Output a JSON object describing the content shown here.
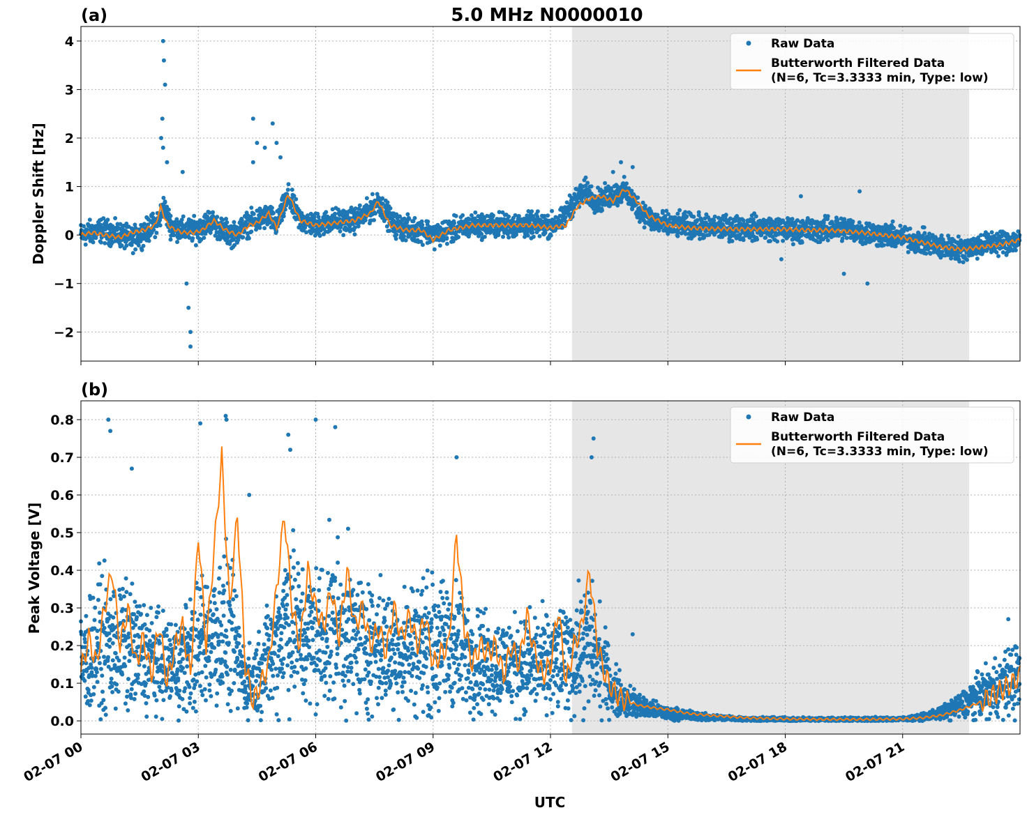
{
  "figure": {
    "title": "5.0 MHz N0000010",
    "xlabel": "UTC",
    "x_ticks": [
      "02-07 00",
      "02-07 03",
      "02-07 06",
      "02-07 09",
      "02-07 12",
      "02-07 15",
      "02-07 18",
      "02-07 21"
    ],
    "shaded_region_hours": [
      12.55,
      22.7
    ],
    "colors": {
      "raw": "#1f77b4",
      "filtered": "#ff7f0e",
      "shade": "#e6e6e6",
      "grid": "#b0b0b0"
    },
    "legend": {
      "raw_label": "Raw Data",
      "filtered_label_line1": "Butterworth Filtered Data",
      "filtered_label_line2": "(N=6, Tc=3.3333 min, Type: low)"
    }
  },
  "chart_data": [
    {
      "panel": "(a)",
      "type": "scatter",
      "ylabel": "Doppler Shift [Hz]",
      "ylim": [
        -2.6,
        4.3
      ],
      "xlim_hours": [
        0,
        24
      ],
      "y_ticks": [
        "4",
        "3",
        "2",
        "1",
        "0",
        "−1",
        "−2"
      ],
      "y_tick_values": [
        4,
        3,
        2,
        1,
        0,
        -1,
        -2
      ],
      "series": [
        {
          "name": "Raw Data",
          "kind": "points",
          "spread": 0.2,
          "x": [
            0,
            0.5,
            1,
            1.3,
            1.7,
            2,
            2.1,
            2.3,
            2.6,
            2.8,
            3,
            3.3,
            3.6,
            3.9,
            4.2,
            4.5,
            4.8,
            5,
            5.3,
            5.6,
            6,
            6.5,
            7,
            7.4,
            7.6,
            8,
            8.5,
            8.8,
            9,
            9.5,
            10,
            10.5,
            11,
            11.5,
            12,
            12.3,
            12.6,
            12.9,
            13.2,
            13.5,
            13.9,
            14.2,
            14.6,
            15,
            15.5,
            16,
            16.5,
            17,
            17.5,
            18,
            18.5,
            19,
            19.5,
            20,
            20.5,
            21,
            21.5,
            22,
            22.5,
            23,
            23.5,
            24
          ],
          "y": [
            0,
            0.1,
            0,
            -0.1,
            0.1,
            0.3,
            0.6,
            0.2,
            0.1,
            0.1,
            0.1,
            0.3,
            0.1,
            0.0,
            0.2,
            0.3,
            0.4,
            0.2,
            0.8,
            0.3,
            0.2,
            0.3,
            0.3,
            0.5,
            0.7,
            0.2,
            0.1,
            0.1,
            0.0,
            0.1,
            0.2,
            0.2,
            0.2,
            0.2,
            0.2,
            0.3,
            0.7,
            0.9,
            0.7,
            0.8,
            0.9,
            0.6,
            0.3,
            0.2,
            0.2,
            0.15,
            0.15,
            0.15,
            0.15,
            0.1,
            0.1,
            0.1,
            0.15,
            0.05,
            0.0,
            -0.05,
            -0.15,
            -0.25,
            -0.3,
            -0.2,
            -0.15,
            -0.1
          ],
          "outliers": [
            [
              2.1,
              4.0
            ],
            [
              2.12,
              3.6
            ],
            [
              2.15,
              3.1
            ],
            [
              2.08,
              2.4
            ],
            [
              2.05,
              2.0
            ],
            [
              2.1,
              1.8
            ],
            [
              2.2,
              1.5
            ],
            [
              2.7,
              -1.0
            ],
            [
              2.75,
              -1.5
            ],
            [
              2.8,
              -2.0
            ],
            [
              2.8,
              -2.3
            ],
            [
              2.6,
              1.3
            ],
            [
              4.4,
              2.4
            ],
            [
              4.5,
              1.9
            ],
            [
              4.7,
              1.8
            ],
            [
              4.9,
              2.3
            ],
            [
              5.0,
              1.9
            ],
            [
              5.1,
              1.6
            ],
            [
              4.4,
              1.5
            ],
            [
              13.8,
              1.5
            ],
            [
              14.1,
              1.4
            ],
            [
              13.6,
              1.3
            ],
            [
              19.9,
              0.9
            ],
            [
              20.1,
              -1.0
            ],
            [
              19.5,
              -0.8
            ],
            [
              18.4,
              0.8
            ],
            [
              17.9,
              -0.5
            ]
          ]
        },
        {
          "name": "Butterworth Filtered Data (N=6, Tc=3.3333 min, Type: low)",
          "kind": "line",
          "x": [
            0,
            0.3,
            0.6,
            1,
            1.3,
            1.6,
            1.9,
            2.05,
            2.15,
            2.3,
            2.6,
            2.9,
            3.1,
            3.4,
            3.7,
            4.0,
            4.3,
            4.5,
            4.8,
            5.0,
            5.3,
            5.6,
            6.0,
            6.5,
            7.0,
            7.4,
            7.6,
            7.9,
            8.3,
            8.7,
            9.0,
            9.4,
            10,
            10.5,
            11,
            11.5,
            12,
            12.4,
            12.7,
            13.0,
            13.3,
            13.6,
            13.9,
            14.2,
            14.5,
            15,
            15.5,
            16,
            17,
            18,
            18.5,
            19,
            19.5,
            20,
            20.5,
            21,
            21.5,
            22,
            22.5,
            23,
            23.5,
            24
          ],
          "y": [
            0.0,
            0.05,
            0.0,
            -0.05,
            0.05,
            0.1,
            0.2,
            0.6,
            0.3,
            0.15,
            0.05,
            0.05,
            0.1,
            0.3,
            0.1,
            0.0,
            0.2,
            0.25,
            0.45,
            0.15,
            0.85,
            0.3,
            0.2,
            0.25,
            0.3,
            0.45,
            0.7,
            0.2,
            0.1,
            0.1,
            -0.1,
            0.1,
            0.2,
            0.2,
            0.2,
            0.2,
            0.15,
            0.2,
            0.6,
            0.75,
            0.8,
            0.7,
            0.95,
            0.7,
            0.4,
            0.2,
            0.15,
            0.13,
            0.12,
            0.12,
            0.1,
            0.1,
            0.08,
            0.05,
            0.0,
            -0.05,
            -0.15,
            -0.25,
            -0.3,
            -0.25,
            -0.2,
            -0.1
          ]
        }
      ]
    },
    {
      "panel": "(b)",
      "type": "scatter",
      "ylabel": "Peak Voltage [V]",
      "ylim": [
        -0.035,
        0.85
      ],
      "xlim_hours": [
        0,
        24
      ],
      "y_ticks": [
        "0.8",
        "0.7",
        "0.6",
        "0.5",
        "0.4",
        "0.3",
        "0.2",
        "0.1",
        "0.0"
      ],
      "y_tick_values": [
        0.8,
        0.7,
        0.6,
        0.5,
        0.4,
        0.3,
        0.2,
        0.1,
        0.0
      ],
      "series": [
        {
          "name": "Raw Data",
          "kind": "points",
          "spread": 0.12,
          "x": [
            0,
            0.5,
            1,
            1.5,
            2,
            2.5,
            3,
            3.3,
            3.6,
            3.9,
            4.2,
            4.5,
            5,
            5.3,
            5.6,
            6,
            6.5,
            7,
            7.5,
            8,
            8.5,
            9,
            9.5,
            10,
            10.5,
            11,
            11.5,
            12,
            12.5,
            13,
            13.3,
            13.6,
            14,
            14.5,
            15,
            15.5,
            16,
            17,
            18,
            19,
            20,
            21,
            21.5,
            22,
            22.5,
            23,
            23.5,
            24
          ],
          "y": [
            0.15,
            0.2,
            0.2,
            0.18,
            0.15,
            0.15,
            0.2,
            0.22,
            0.25,
            0.2,
            0.1,
            0.12,
            0.2,
            0.3,
            0.22,
            0.22,
            0.25,
            0.22,
            0.2,
            0.18,
            0.2,
            0.2,
            0.2,
            0.17,
            0.15,
            0.15,
            0.15,
            0.15,
            0.17,
            0.2,
            0.15,
            0.08,
            0.05,
            0.03,
            0.02,
            0.015,
            0.01,
            0.005,
            0.004,
            0.004,
            0.004,
            0.005,
            0.01,
            0.02,
            0.04,
            0.07,
            0.09,
            0.12
          ],
          "outliers": [
            [
              0.7,
              0.8
            ],
            [
              0.75,
              0.77
            ],
            [
              3.05,
              0.79
            ],
            [
              3.7,
              0.81
            ],
            [
              3.72,
              0.8
            ],
            [
              5.3,
              0.76
            ],
            [
              5.35,
              0.72
            ],
            [
              6.0,
              0.8
            ],
            [
              6.5,
              0.78
            ],
            [
              9.6,
              0.7
            ],
            [
              13.1,
              0.75
            ],
            [
              13.05,
              0.7
            ],
            [
              4.3,
              0.6
            ],
            [
              1.3,
              0.67
            ],
            [
              14.1,
              0.23
            ],
            [
              23.7,
              0.27
            ]
          ]
        },
        {
          "name": "Butterworth Filtered Data (N=6, Tc=3.3333 min, Type: low)",
          "kind": "line",
          "x": [
            0,
            0.2,
            0.4,
            0.6,
            0.8,
            1.0,
            1.2,
            1.4,
            1.6,
            1.8,
            2.0,
            2.2,
            2.4,
            2.6,
            2.8,
            3.0,
            3.2,
            3.4,
            3.6,
            3.8,
            4.0,
            4.2,
            4.4,
            4.6,
            4.8,
            5.0,
            5.2,
            5.4,
            5.6,
            5.8,
            6.0,
            6.2,
            6.4,
            6.6,
            6.8,
            7.0,
            7.2,
            7.4,
            7.6,
            7.8,
            8.0,
            8.2,
            8.4,
            8.6,
            8.8,
            9.0,
            9.2,
            9.4,
            9.6,
            9.8,
            10.0,
            10.2,
            10.4,
            10.6,
            10.8,
            11.0,
            11.2,
            11.4,
            11.6,
            11.8,
            12.0,
            12.2,
            12.4,
            12.6,
            12.8,
            13.0,
            13.2,
            13.4,
            13.6,
            13.8,
            14.0,
            14.3,
            14.6,
            15,
            15.5,
            16,
            17,
            18,
            19,
            20,
            21,
            21.5,
            22,
            22.5,
            23,
            23.5,
            23.8,
            24
          ],
          "y": [
            0.13,
            0.22,
            0.15,
            0.3,
            0.4,
            0.2,
            0.3,
            0.15,
            0.22,
            0.12,
            0.26,
            0.1,
            0.2,
            0.25,
            0.12,
            0.5,
            0.2,
            0.45,
            0.7,
            0.3,
            0.55,
            0.15,
            0.05,
            0.1,
            0.15,
            0.35,
            0.55,
            0.3,
            0.2,
            0.4,
            0.3,
            0.25,
            0.35,
            0.22,
            0.4,
            0.25,
            0.3,
            0.2,
            0.25,
            0.18,
            0.3,
            0.22,
            0.28,
            0.2,
            0.28,
            0.15,
            0.18,
            0.2,
            0.5,
            0.25,
            0.15,
            0.2,
            0.18,
            0.2,
            0.12,
            0.2,
            0.15,
            0.28,
            0.18,
            0.12,
            0.15,
            0.3,
            0.1,
            0.2,
            0.25,
            0.4,
            0.2,
            0.12,
            0.08,
            0.06,
            0.05,
            0.04,
            0.035,
            0.03,
            0.02,
            0.015,
            0.008,
            0.005,
            0.004,
            0.004,
            0.005,
            0.008,
            0.015,
            0.03,
            0.05,
            0.08,
            0.1,
            0.12
          ]
        }
      ]
    }
  ]
}
